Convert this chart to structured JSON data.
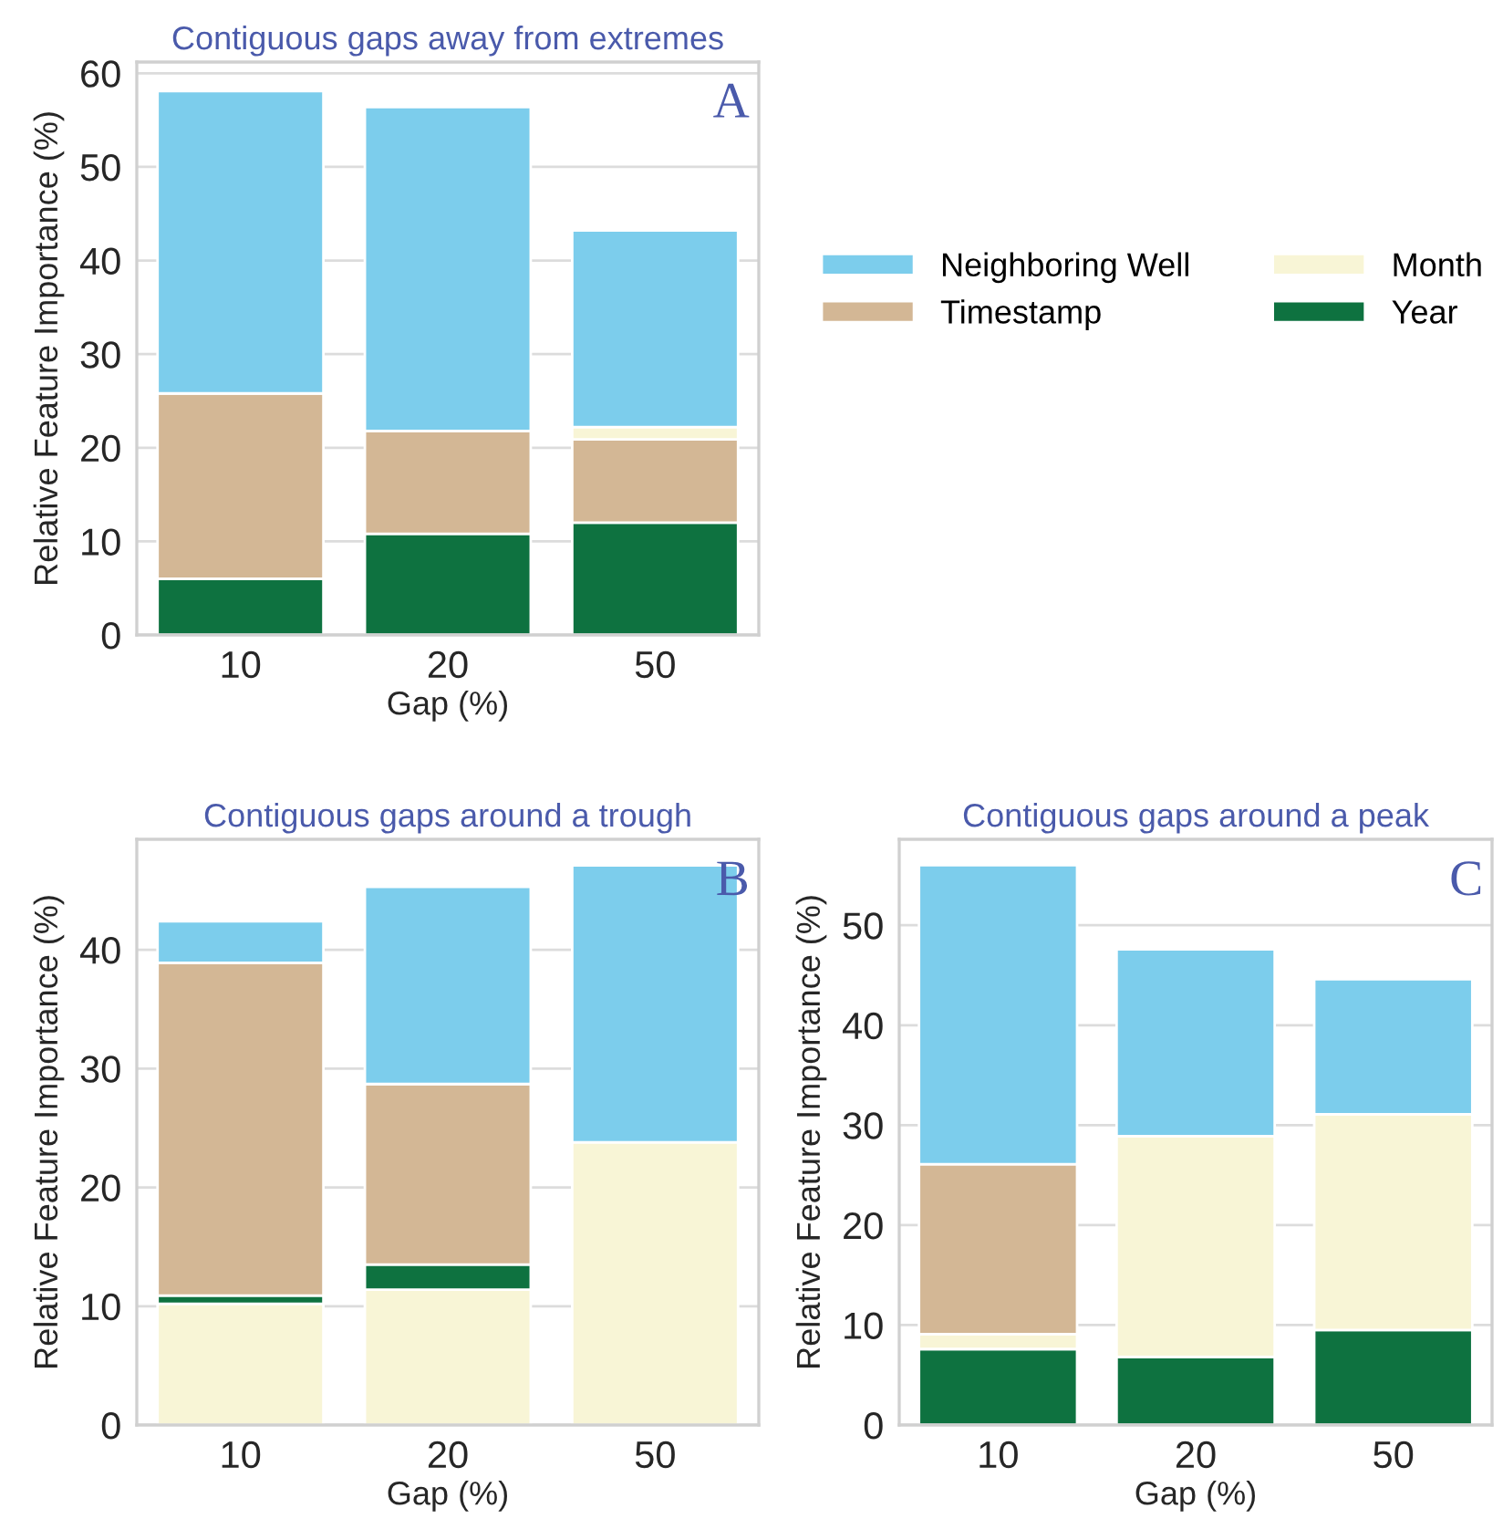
{
  "chart_data": [
    {
      "type": "bar",
      "stacked": true,
      "title": "Contiguous gaps away from extremes",
      "xlabel": "Gap (%)",
      "ylabel": "Relative Feature Importance (%)",
      "annotations": [
        "A"
      ],
      "categories": [
        "10",
        "20",
        "50"
      ],
      "ylim": [
        0,
        61.2
      ],
      "yticks": [
        0,
        10,
        20,
        30,
        40,
        50,
        60
      ],
      "grid": "y",
      "legend": "right",
      "series": [
        {
          "name": "Year",
          "color": "#0e7240",
          "values": [
            6.0,
            10.8,
            12.0
          ]
        },
        {
          "name": "Timestamp",
          "color": "#d3b795",
          "values": [
            19.8,
            11.0,
            8.9
          ]
        },
        {
          "name": "Month",
          "color": "#f8f5d6",
          "values": [
            null,
            null,
            1.3
          ]
        },
        {
          "name": "Neighboring Well",
          "color": "#7ccdec",
          "values": [
            32.3,
            34.6,
            21.0
          ]
        }
      ]
    },
    {
      "type": "bar",
      "stacked": true,
      "title": "Contiguous gaps around a trough",
      "xlabel": "Gap (%)",
      "ylabel": "Relative Feature Importance (%)",
      "annotations": [
        "B"
      ],
      "categories": [
        "10",
        "20",
        "50"
      ],
      "ylim": [
        0,
        49.3
      ],
      "yticks": [
        0,
        10,
        20,
        30,
        40
      ],
      "grid": "y",
      "series": [
        {
          "color": "#f8f5d6",
          "values": [
            10.2,
            11.4,
            23.8
          ]
        },
        {
          "color": "#0e7240",
          "values": [
            0.7,
            2.1,
            null
          ]
        },
        {
          "color": "#d3b795",
          "values": [
            28.0,
            15.2,
            null
          ]
        },
        {
          "color": "#7ccdec",
          "values": [
            3.5,
            16.6,
            23.3
          ]
        }
      ]
    },
    {
      "type": "bar",
      "stacked": true,
      "title": "Contiguous gaps around a peak",
      "xlabel": "Gap (%)",
      "ylabel": "Relative Feature Importance (%)",
      "annotations": [
        "C"
      ],
      "categories": [
        "10",
        "20",
        "50"
      ],
      "ylim": [
        0,
        58.6
      ],
      "yticks": [
        0,
        10,
        20,
        30,
        40,
        50
      ],
      "grid": "y",
      "series": [
        {
          "color": "#0e7240",
          "values": [
            7.6,
            6.8,
            9.5
          ]
        },
        {
          "color": "#f8f5d6",
          "values": [
            1.5,
            22.1,
            21.6
          ]
        },
        {
          "color": "#d3b795",
          "values": [
            17.0,
            null,
            null
          ]
        },
        {
          "color": "#7ccdec",
          "values": [
            29.9,
            18.7,
            13.5
          ]
        }
      ]
    }
  ]
}
